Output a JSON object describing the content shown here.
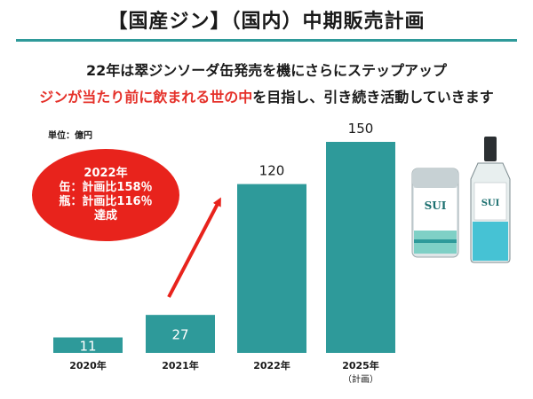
{
  "slide": {
    "title": "【国産ジン】（国内）中期販売計画",
    "subtitle_line1": "22年は翠ジンソーダ缶発売を機にさらにステップアップ",
    "subtitle_line2_red": "ジンが当たり前に飲まれる世の中",
    "subtitle_line2_rest": "を目指し、引き続き活動していきます",
    "unit_label": "単位：億円"
  },
  "callout": {
    "line1": "2022年",
    "line2": "缶：計画比158％",
    "line3": "瓶：計画比116％",
    "line4": "達成"
  },
  "colors": {
    "bar": "#2e9a9a",
    "accent_rule": "#2f9a9a",
    "callout": "#e8231c",
    "highlight_text": "#e5312a",
    "arrow": "#e8231c"
  },
  "product_image": {
    "can_text": "SUI",
    "bottle_text": "SUI"
  },
  "chart_data": {
    "type": "bar",
    "categories": [
      "2020年",
      "2021年",
      "2022年",
      "2025年"
    ],
    "category_notes": [
      "",
      "",
      "",
      "（計画）"
    ],
    "values": [
      11,
      27,
      120,
      150
    ],
    "value_labels": [
      "11",
      "27",
      "120",
      "150"
    ],
    "ylabel": "単位：億円",
    "ylim": [
      0,
      150
    ],
    "grid": false,
    "legend": "none"
  }
}
